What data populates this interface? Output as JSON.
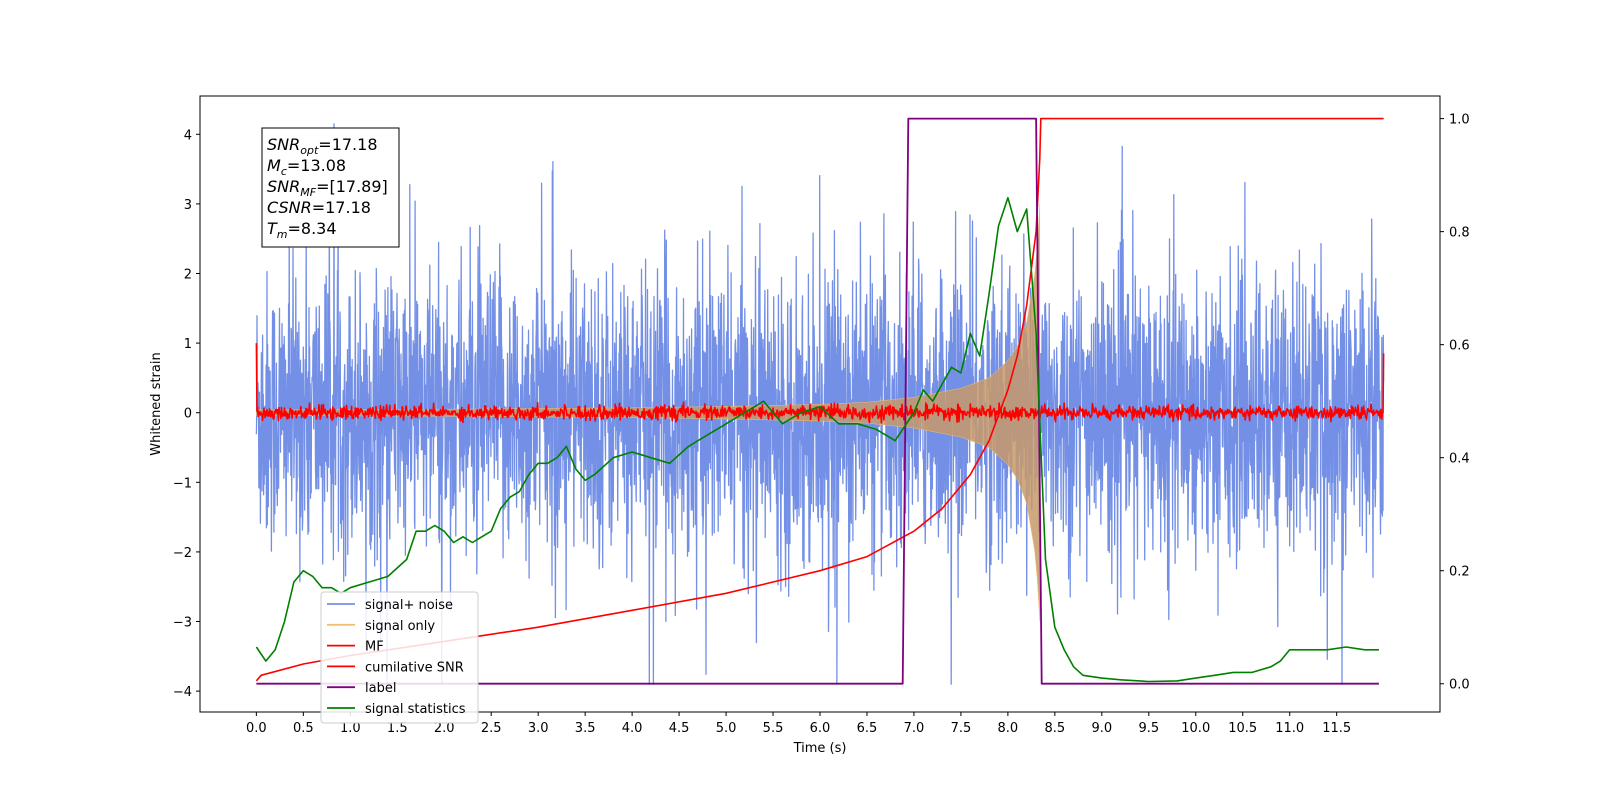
{
  "chart_data": {
    "type": "line",
    "xlabel": "Time (s)",
    "ylabel": "Whitened strain",
    "xlim": [
      -0.6,
      12.6
    ],
    "ylim": [
      -4.3,
      4.55
    ],
    "y2lim": [
      -0.05,
      1.04
    ],
    "xticks": [
      0.0,
      0.5,
      1.0,
      1.5,
      2.0,
      2.5,
      3.0,
      3.5,
      4.0,
      4.5,
      5.0,
      5.5,
      6.0,
      6.5,
      7.0,
      7.5,
      8.0,
      8.5,
      9.0,
      9.5,
      10.0,
      10.5,
      11.0,
      11.5
    ],
    "xtick_labels": [
      "0.0",
      "0.5",
      "1.0",
      "1.5",
      "2.0",
      "2.5",
      "3.0",
      "3.5",
      "4.0",
      "4.5",
      "5.0",
      "5.5",
      "6.0",
      "6.5",
      "7.0",
      "7.5",
      "8.0",
      "8.5",
      "9.0",
      "9.5",
      "10.0",
      "10.5",
      "11.0",
      "11.5"
    ],
    "yticks": [
      -4,
      -3,
      -2,
      -1,
      0,
      1,
      2,
      3,
      4
    ],
    "ytick_labels": [
      "−4",
      "−3",
      "−2",
      "−1",
      "0",
      "1",
      "2",
      "3",
      "4"
    ],
    "y2ticks": [
      0.0,
      0.2,
      0.4,
      0.6,
      0.8,
      1.0
    ],
    "y2tick_labels": [
      "0.0",
      "0.2",
      "0.4",
      "0.6",
      "0.8",
      "1.0"
    ],
    "grid": false,
    "legend_position": "lower-left",
    "annotation_box": {
      "lines": [
        {
          "var": "SNR",
          "sub": "opt",
          "value": "=17.18"
        },
        {
          "var": "M",
          "sub": "c",
          "value": "=13.08"
        },
        {
          "var": "SNR",
          "sub": "MF",
          "value": "=[17.89]"
        },
        {
          "var": "CSNR",
          "sub": "",
          "value": "=17.18"
        },
        {
          "var": "T",
          "sub": "m",
          "value": "=8.34"
        }
      ]
    },
    "series": [
      {
        "name": "signal+ noise",
        "color": "#7390e6",
        "axis": "left",
        "kind": "noise",
        "x_range": [
          0.0,
          12.0
        ],
        "typical_amplitude": 1.0,
        "peak_range": [
          -3.9,
          4.15
        ]
      },
      {
        "name": "signal only",
        "color": "#f0c070",
        "axis": "left",
        "kind": "chirp",
        "x_range": [
          0.0,
          8.34
        ],
        "envelope_x": [
          0.0,
          2.0,
          4.0,
          5.0,
          6.0,
          6.5,
          7.0,
          7.5,
          7.8,
          8.0,
          8.1,
          8.2,
          8.3,
          8.34,
          8.4
        ],
        "envelope_y": [
          0.04,
          0.05,
          0.07,
          0.09,
          0.12,
          0.15,
          0.22,
          0.35,
          0.5,
          0.75,
          0.95,
          1.3,
          2.1,
          3.0,
          0.0
        ]
      },
      {
        "name": "MF",
        "color": "#ff0000",
        "axis": "left",
        "kind": "noise_small",
        "x_range": [
          0.0,
          12.0
        ],
        "start_value": 1.0,
        "end_value": 0.85,
        "typical_amplitude": 0.05
      },
      {
        "name": "cumilative SNR",
        "color": "#ff0000",
        "axis": "right",
        "x": [
          0.0,
          0.05,
          0.5,
          1.0,
          2.0,
          3.0,
          4.0,
          5.0,
          5.5,
          6.0,
          6.5,
          7.0,
          7.3,
          7.6,
          7.8,
          8.0,
          8.1,
          8.2,
          8.3,
          8.34,
          8.35,
          8.4,
          12.0
        ],
        "values": [
          0.005,
          0.015,
          0.035,
          0.05,
          0.075,
          0.1,
          0.13,
          0.16,
          0.18,
          0.2,
          0.225,
          0.27,
          0.31,
          0.37,
          0.43,
          0.52,
          0.58,
          0.67,
          0.8,
          0.93,
          1.0,
          1.0,
          1.0
        ]
      },
      {
        "name": "label",
        "color": "#800080",
        "axis": "right",
        "x": [
          0.0,
          6.88,
          6.94,
          8.3,
          8.36,
          11.95
        ],
        "values": [
          0.0,
          0.0,
          1.0,
          1.0,
          0.0,
          0.0
        ]
      },
      {
        "name": "signal statistics",
        "color": "#008000",
        "axis": "right",
        "x": [
          0.0,
          0.1,
          0.2,
          0.3,
          0.4,
          0.5,
          0.6,
          0.7,
          0.8,
          0.9,
          1.0,
          1.2,
          1.4,
          1.6,
          1.7,
          1.8,
          1.9,
          2.0,
          2.1,
          2.2,
          2.3,
          2.4,
          2.5,
          2.6,
          2.7,
          2.8,
          2.9,
          3.0,
          3.1,
          3.2,
          3.3,
          3.4,
          3.5,
          3.6,
          3.8,
          4.0,
          4.2,
          4.4,
          4.6,
          4.7,
          4.8,
          5.0,
          5.2,
          5.4,
          5.6,
          5.8,
          6.0,
          6.2,
          6.4,
          6.6,
          6.8,
          7.0,
          7.1,
          7.2,
          7.4,
          7.5,
          7.6,
          7.7,
          7.8,
          7.9,
          8.0,
          8.1,
          8.2,
          8.3,
          8.4,
          8.5,
          8.6,
          8.7,
          8.8,
          9.0,
          9.2,
          9.5,
          9.8,
          10.0,
          10.2,
          10.4,
          10.6,
          10.8,
          10.9,
          11.0,
          11.2,
          11.4,
          11.6,
          11.8,
          11.95
        ],
        "values": [
          0.065,
          0.04,
          0.06,
          0.11,
          0.18,
          0.2,
          0.19,
          0.17,
          0.17,
          0.16,
          0.17,
          0.18,
          0.19,
          0.22,
          0.27,
          0.27,
          0.28,
          0.27,
          0.25,
          0.26,
          0.25,
          0.26,
          0.27,
          0.31,
          0.33,
          0.34,
          0.37,
          0.39,
          0.39,
          0.4,
          0.42,
          0.38,
          0.36,
          0.37,
          0.4,
          0.41,
          0.4,
          0.39,
          0.42,
          0.43,
          0.44,
          0.46,
          0.48,
          0.5,
          0.46,
          0.48,
          0.49,
          0.46,
          0.46,
          0.45,
          0.43,
          0.48,
          0.52,
          0.5,
          0.56,
          0.55,
          0.62,
          0.58,
          0.69,
          0.81,
          0.86,
          0.8,
          0.84,
          0.62,
          0.22,
          0.1,
          0.06,
          0.03,
          0.015,
          0.01,
          0.007,
          0.004,
          0.005,
          0.01,
          0.015,
          0.02,
          0.02,
          0.03,
          0.04,
          0.06,
          0.06,
          0.06,
          0.065,
          0.06,
          0.06
        ]
      }
    ]
  }
}
